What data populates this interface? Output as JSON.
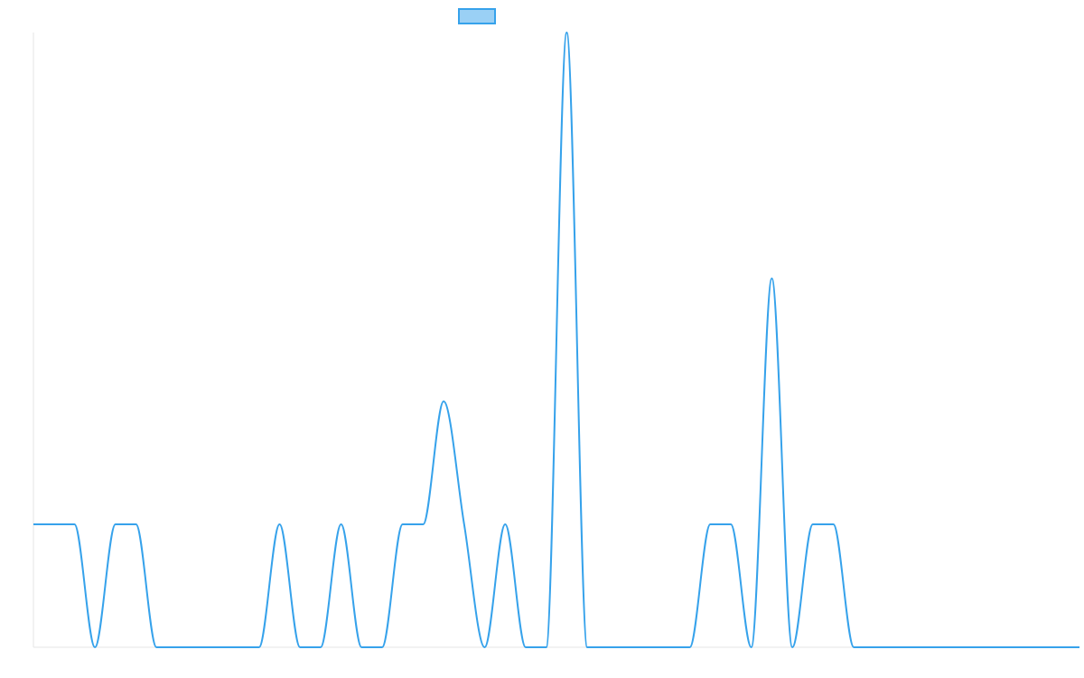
{
  "chart_data": {
    "type": "line",
    "title": "",
    "xlabel": "",
    "ylabel": "",
    "legend": {
      "position": "top-center",
      "entries": [
        {
          "label": "",
          "color": "#36a2eb",
          "fill": "#9ad0f5"
        }
      ]
    },
    "grid": false,
    "x": [
      0,
      1,
      2,
      3,
      4,
      5,
      6,
      7,
      8,
      9,
      10,
      11,
      12,
      13,
      14,
      15,
      16,
      17,
      18,
      19,
      20,
      21,
      22,
      23,
      24,
      25,
      26,
      27,
      28,
      29,
      30,
      31,
      32,
      33,
      34,
      35,
      36,
      37,
      38,
      39,
      40,
      41,
      42,
      43,
      44,
      45,
      46,
      47,
      48,
      49,
      50,
      51
    ],
    "xlim": [
      0,
      51
    ],
    "ylim": [
      0,
      10
    ],
    "series": [
      {
        "color": "#36a2eb",
        "values": [
          2,
          2,
          2,
          0,
          2,
          2,
          0,
          0,
          0,
          0,
          0,
          0,
          2,
          0,
          0,
          2,
          0,
          0,
          2,
          2,
          4,
          2,
          0,
          2,
          0,
          0,
          10,
          0,
          0,
          0,
          0,
          0,
          0,
          2,
          2,
          0,
          6,
          0,
          2,
          2,
          0,
          0,
          0,
          0,
          0,
          0,
          0,
          0,
          0,
          0,
          0,
          0
        ]
      }
    ]
  }
}
